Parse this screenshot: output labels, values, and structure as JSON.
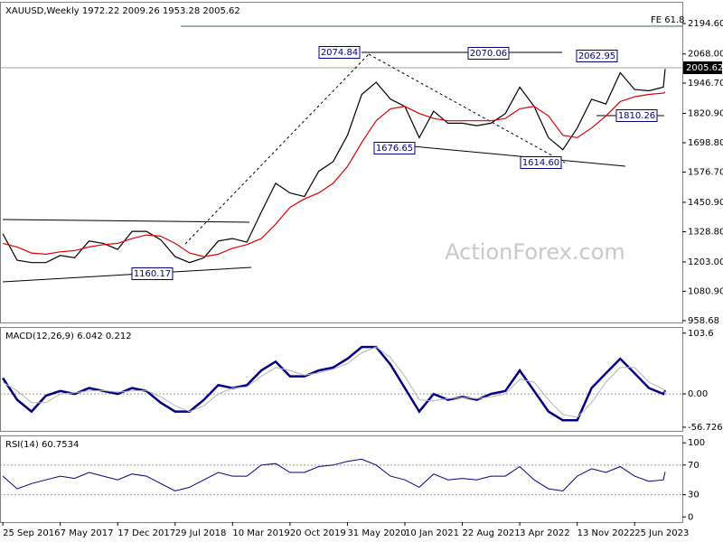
{
  "chart_data": [
    {
      "type": "line",
      "title": "XAUUSD,Weekly  1972.22 2009.26 1953.28 2005.62",
      "watermark": "ActionForex.com",
      "x": [
        "25 Sep 2016",
        "20 Nov 2016",
        "15 Jan 2017",
        "12 Mar 2017",
        "7 May 2017",
        "2 Jul 2017",
        "27 Aug 2017",
        "22 Oct 2017",
        "17 Dec 2017",
        "11 Feb 2018",
        "8 Apr 2018",
        "3 Jun 2018",
        "29 Jul 2018",
        "23 Sep 2018",
        "18 Nov 2018",
        "13 Jan 2019",
        "10 Mar 2019",
        "5 May 2019",
        "30 Jun 2019",
        "25 Aug 2019",
        "20 Oct 2019",
        "15 Dec 2019",
        "9 Feb 2020",
        "5 Apr 2020",
        "31 May 2020",
        "26 Jul 2020",
        "20 Sep 2020",
        "15 Nov 2020",
        "10 Jan 2021",
        "7 Mar 2021",
        "2 May 2021",
        "27 Jun 2021",
        "22 Aug 2021",
        "17 Oct 2021",
        "12 Dec 2021",
        "6 Feb 2022",
        "3 Apr 2022",
        "29 May 2022",
        "24 Jul 2022",
        "18 Sep 2022",
        "13 Nov 2022",
        "8 Jan 2023",
        "5 Mar 2023",
        "30 Apr 2023",
        "25 Jun 2023",
        "20 Aug 2023",
        "15 Oct 2023",
        "22 Oct 2023"
      ],
      "xlim": [
        "14 Sep 2016",
        "28 Dec 2023"
      ],
      "series": [
        {
          "color": "#000000",
          "values": [
            1320,
            1210,
            1200,
            1200,
            1230,
            1220,
            1290,
            1280,
            1255,
            1330,
            1330,
            1295,
            1225,
            1200,
            1220,
            1290,
            1300,
            1285,
            1410,
            1530,
            1490,
            1475,
            1580,
            1620,
            1730,
            1900,
            1950,
            1880,
            1850,
            1720,
            1830,
            1780,
            1780,
            1770,
            1780,
            1820,
            1930,
            1850,
            1720,
            1670,
            1760,
            1880,
            1860,
            1990,
            1920,
            1915,
            1930,
            2005.62
          ]
        },
        {
          "color": "#e00000",
          "values": [
            1280,
            1265,
            1240,
            1235,
            1245,
            1250,
            1265,
            1275,
            1280,
            1300,
            1315,
            1310,
            1280,
            1240,
            1225,
            1235,
            1260,
            1275,
            1300,
            1360,
            1430,
            1465,
            1490,
            1530,
            1600,
            1700,
            1790,
            1840,
            1850,
            1820,
            1800,
            1790,
            1790,
            1790,
            1790,
            1800,
            1840,
            1850,
            1810,
            1730,
            1720,
            1760,
            1810,
            1870,
            1890,
            1900,
            1905,
            1910
          ]
        }
      ],
      "ylim": [
        951,
        2285
      ],
      "yticks": [
        {
          "value": 2194.6,
          "label": "2194.60"
        },
        {
          "value": 2068,
          "label": "2068.00"
        },
        {
          "value": 1946.7,
          "label": "1946.70"
        },
        {
          "value": 1820.9,
          "label": "1820.90"
        },
        {
          "value": 1698.8,
          "label": "1698.80"
        },
        {
          "value": 1576.7,
          "label": "1576.70"
        },
        {
          "value": 1450.9,
          "label": "1450.90"
        },
        {
          "value": 1328.8,
          "label": "1328.80"
        },
        {
          "value": 1203,
          "label": "1203.00"
        },
        {
          "value": 1080.9,
          "label": "1080.90"
        },
        958.68
      ],
      "annotations": [
        "FE 61.8",
        "2074.84",
        "2070.06",
        "2062.95",
        "1676.65",
        "1614.60",
        "1810.26",
        "1160.17"
      ],
      "last_price_label": "2005.62"
    },
    {
      "type": "line",
      "title": "MACD(12,26,9) 6.042 0.212",
      "series": [
        {
          "color": "#000080",
          "values": [
            27,
            -10,
            -30,
            -3,
            5,
            0,
            10,
            5,
            0,
            10,
            5,
            -15,
            -30,
            -30,
            -10,
            15,
            10,
            15,
            40,
            55,
            30,
            30,
            40,
            45,
            60,
            80,
            80,
            50,
            10,
            -30,
            0,
            -10,
            -5,
            -10,
            0,
            5,
            40,
            5,
            -30,
            -45,
            -45,
            10,
            35,
            60,
            35,
            10,
            0,
            6.042
          ]
        },
        {
          "color": "#b4b4b4",
          "values": [
            20,
            5,
            -15,
            -15,
            0,
            2,
            5,
            6,
            3,
            5,
            6,
            -5,
            -20,
            -30,
            -20,
            0,
            10,
            12,
            30,
            45,
            40,
            32,
            36,
            42,
            52,
            70,
            80,
            62,
            30,
            -10,
            -12,
            -8,
            -6,
            -8,
            -5,
            0,
            25,
            20,
            -10,
            -35,
            -40,
            -15,
            20,
            45,
            45,
            20,
            8,
            0.212
          ]
        }
      ],
      "ylim": [
        -63,
        114
      ],
      "yticks": [
        103.6,
        {
          "value": 0,
          "label": "0.00"
        },
        -56.726
      ]
    },
    {
      "type": "line",
      "title": "RSI(14) 60.7534",
      "series": [
        {
          "color": "#000080",
          "values": [
            55,
            38,
            45,
            50,
            55,
            52,
            60,
            55,
            50,
            58,
            55,
            45,
            35,
            40,
            50,
            60,
            55,
            55,
            70,
            72,
            60,
            60,
            68,
            70,
            75,
            78,
            70,
            55,
            50,
            40,
            58,
            50,
            52,
            50,
            55,
            55,
            68,
            50,
            38,
            35,
            55,
            65,
            60,
            68,
            55,
            48,
            50,
            60.7534
          ]
        }
      ],
      "ylim": [
        -7,
        110
      ],
      "yticks": [
        100,
        70,
        30,
        0
      ],
      "levels": [
        70,
        30
      ],
      "xticks": [
        "25 Sep 2016",
        "7 May 2017",
        "17 Dec 2017",
        "29 Jul 2018",
        "10 Mar 2019",
        "20 Oct 2019",
        "31 May 2020",
        "10 Jan 2021",
        "22 Aug 2021",
        "3 Apr 2022",
        "13 Nov 2022",
        "25 Jun 2023"
      ]
    }
  ]
}
